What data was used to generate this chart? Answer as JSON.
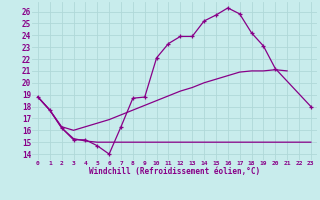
{
  "bg_color": "#c8ecec",
  "grid_color": "#b0d8d8",
  "line_color": "#880088",
  "xlim": [
    -0.5,
    23.5
  ],
  "ylim": [
    13.5,
    26.8
  ],
  "xtick_labels": [
    "0",
    "1",
    "2",
    "3",
    "4",
    "5",
    "6",
    "7",
    "8",
    "9",
    "10",
    "11",
    "12",
    "13",
    "14",
    "15",
    "16",
    "17",
    "18",
    "19",
    "20",
    "21",
    "22",
    "23"
  ],
  "ytick_labels": [
    "14",
    "15",
    "16",
    "17",
    "18",
    "19",
    "20",
    "21",
    "22",
    "23",
    "24",
    "25",
    "26"
  ],
  "ytick_vals": [
    14,
    15,
    16,
    17,
    18,
    19,
    20,
    21,
    22,
    23,
    24,
    25,
    26
  ],
  "xlabel": "Windchill (Refroidissement éolien,°C)",
  "line1_x": [
    0,
    1,
    2,
    3,
    4,
    5,
    6,
    7,
    8,
    9,
    10,
    11,
    12,
    13,
    14,
    15,
    16,
    17,
    18,
    19,
    20,
    23
  ],
  "line1_y": [
    18.8,
    17.7,
    16.2,
    15.2,
    15.2,
    14.7,
    14.0,
    16.3,
    18.7,
    18.8,
    22.1,
    23.3,
    23.9,
    23.9,
    25.2,
    25.7,
    26.3,
    25.8,
    24.2,
    23.1,
    21.2,
    18.0
  ],
  "line2_x": [
    0,
    1,
    2,
    3,
    4,
    5,
    6,
    7,
    8,
    9,
    10,
    11,
    12,
    13,
    14,
    15,
    16,
    17,
    18,
    19,
    20,
    21,
    22,
    23
  ],
  "line2_y": [
    18.8,
    17.7,
    16.2,
    15.3,
    15.1,
    15.0,
    15.0,
    15.0,
    15.0,
    15.0,
    15.0,
    15.0,
    15.0,
    15.0,
    15.0,
    15.0,
    15.0,
    15.0,
    15.0,
    15.0,
    15.0,
    15.0,
    15.0,
    15.0
  ],
  "line3_x": [
    0,
    1,
    2,
    3,
    4,
    5,
    6,
    7,
    8,
    9,
    10,
    11,
    12,
    13,
    14,
    15,
    16,
    17,
    18,
    19,
    20,
    21
  ],
  "line3_y": [
    18.8,
    17.7,
    16.3,
    16.0,
    16.3,
    16.6,
    16.9,
    17.3,
    17.7,
    18.1,
    18.5,
    18.9,
    19.3,
    19.6,
    20.0,
    20.3,
    20.6,
    20.9,
    21.0,
    21.0,
    21.1,
    21.0
  ]
}
